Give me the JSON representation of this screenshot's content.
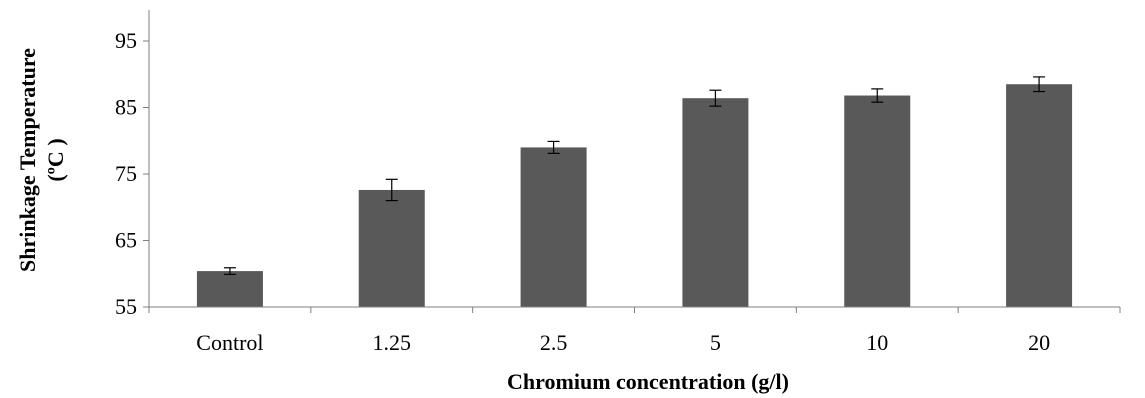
{
  "chart_data": {
    "type": "bar",
    "title": "",
    "xlabel": "Chromium concentration (g/l)",
    "ylabel_line1": "Shrinkage Temperature",
    "ylabel_line2": "(ºC )",
    "categories": [
      "Control",
      "1.25",
      "2.5",
      "5",
      "10",
      "20"
    ],
    "values": [
      60.4,
      72.6,
      79.0,
      86.4,
      86.8,
      88.5
    ],
    "errors": [
      0.5,
      1.6,
      0.9,
      1.2,
      1.0,
      1.1
    ],
    "ylim": [
      55,
      95
    ],
    "yticks": [
      "55",
      "65",
      "75",
      "85",
      "95"
    ],
    "grid": false,
    "legend": "none",
    "colors": {
      "bar": "#595959",
      "axis": "#7f7f7f",
      "error_bar": "#000000"
    }
  }
}
